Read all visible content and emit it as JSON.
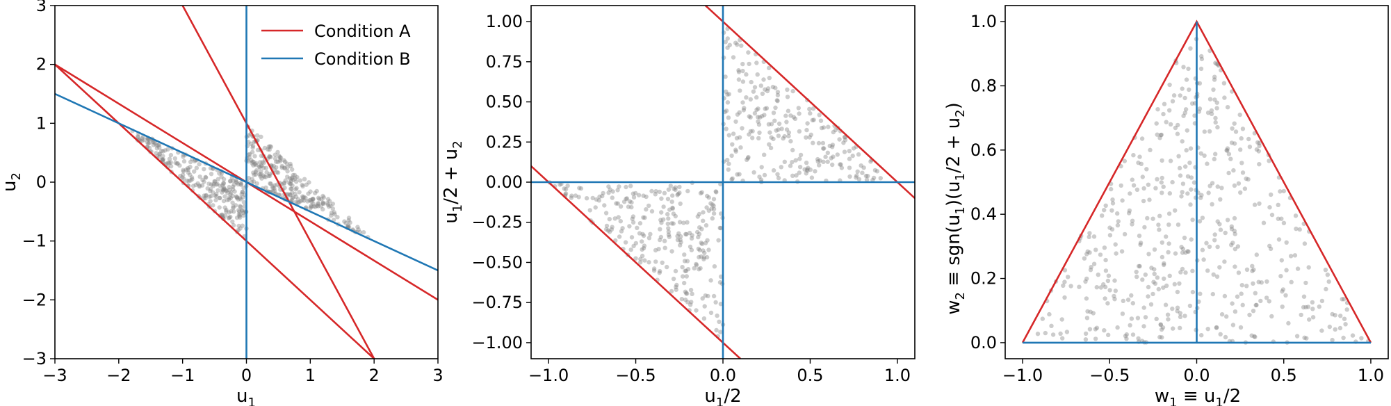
{
  "colors": {
    "condition_a": "#d62728",
    "condition_b": "#1f77b4",
    "points": "#808080"
  },
  "chart_data": [
    {
      "type": "scatter",
      "xlabel_base": "u",
      "xlabel_sub": "1",
      "xlabel_tail": "",
      "ylabel_parts": [
        {
          "t": "u"
        },
        {
          "t": "2",
          "sub": true
        }
      ],
      "xlim": [
        -3,
        3
      ],
      "ylim": [
        -3,
        3
      ],
      "xticks": [
        -3,
        -2,
        -1,
        0,
        1,
        2,
        3
      ],
      "yticks": [
        -3,
        -2,
        -1,
        0,
        1,
        2,
        3
      ],
      "legend": {
        "placement": "top-right",
        "entries": [
          {
            "label": "Condition A",
            "color": "#d62728"
          },
          {
            "label": "Condition B",
            "color": "#1f77b4"
          }
        ]
      },
      "lines": [
        {
          "series": "Condition A",
          "points": [
            [
              -3,
              2
            ],
            [
              3,
              -2
            ]
          ]
        },
        {
          "series": "Condition A",
          "points": [
            [
              -1,
              3
            ],
            [
              2,
              -3
            ]
          ]
        },
        {
          "series": "Condition A",
          "points": [
            [
              -3,
              2
            ],
            [
              2,
              -3
            ]
          ]
        },
        {
          "series": "Condition B",
          "points": [
            [
              0,
              -3
            ],
            [
              0,
              3
            ]
          ]
        },
        {
          "series": "Condition B",
          "points": [
            [
              -3,
              1.5
            ],
            [
              3,
              -1.5
            ]
          ]
        }
      ],
      "scatter_region": "regions bounded by u2=-u1/2, u2=-u1-1 (u1<0) and u2=-u1+1 (u1>0); about 500 points, alpha 0.4"
    },
    {
      "type": "scatter",
      "xlabel_parts": [
        {
          "t": "u"
        },
        {
          "t": "1",
          "sub": true
        },
        {
          "t": "/2"
        }
      ],
      "ylabel_parts": [
        {
          "t": "u"
        },
        {
          "t": "1",
          "sub": true
        },
        {
          "t": "/2 + u"
        },
        {
          "t": "2",
          "sub": true
        }
      ],
      "xlim": [
        -1.1,
        1.1
      ],
      "ylim": [
        -1.1,
        1.1
      ],
      "xticks": [
        -1.0,
        -0.5,
        0.0,
        0.5,
        1.0
      ],
      "xtick_labels": [
        "−1.0",
        "−0.5",
        "0.0",
        "0.5",
        "1.0"
      ],
      "yticks": [
        1.0,
        0.75,
        0.5,
        0.25,
        0.0,
        -0.25,
        -0.5,
        -0.75,
        -1.0
      ],
      "ytick_labels": [
        "1.00",
        "0.75",
        "0.50",
        "0.25",
        "0.00",
        "−0.25",
        "−0.50",
        "−0.75",
        "−1.00"
      ],
      "lines": [
        {
          "series": "Condition A",
          "points": [
            [
              -1.1,
              0.1
            ],
            [
              0.1,
              -1.1
            ]
          ]
        },
        {
          "series": "Condition A",
          "points": [
            [
              -0.1,
              1.1
            ],
            [
              1.1,
              -0.1
            ]
          ]
        },
        {
          "series": "Condition B",
          "points": [
            [
              0,
              -1.1
            ],
            [
              0,
              1.1
            ]
          ]
        },
        {
          "series": "Condition B",
          "points": [
            [
              -1.1,
              0
            ],
            [
              1.1,
              0
            ]
          ]
        }
      ],
      "scatter_region": "two triangles: x in [-1,0], y in [-1-x, 0] and x in [0,1], y in [0, 1-x]"
    },
    {
      "type": "scatter",
      "xlabel_parts": [
        {
          "t": "w"
        },
        {
          "t": "1",
          "sub": true
        },
        {
          "t": " ≡ u"
        },
        {
          "t": "1",
          "sub": true
        },
        {
          "t": "/2"
        }
      ],
      "ylabel_parts": [
        {
          "t": "w"
        },
        {
          "t": "2",
          "sub": true
        },
        {
          "t": " ≡ sgn(u"
        },
        {
          "t": "1",
          "sub": true
        },
        {
          "t": ")(u"
        },
        {
          "t": "1",
          "sub": true
        },
        {
          "t": "/2 + u"
        },
        {
          "t": "2",
          "sub": true
        },
        {
          "t": ")"
        }
      ],
      "xlim": [
        -1.1,
        1.1
      ],
      "ylim": [
        -0.05,
        1.05
      ],
      "xticks": [
        -1.0,
        -0.5,
        0.0,
        0.5,
        1.0
      ],
      "xtick_labels": [
        "−1.0",
        "−0.5",
        "0.0",
        "0.5",
        "1.0"
      ],
      "yticks": [
        0.0,
        0.2,
        0.4,
        0.6,
        0.8,
        1.0
      ],
      "ytick_labels": [
        "0.0",
        "0.2",
        "0.4",
        "0.6",
        "0.8",
        "1.0"
      ],
      "lines": [
        {
          "series": "Condition A",
          "points": [
            [
              -1,
              0
            ],
            [
              0,
              1
            ],
            [
              1,
              0
            ]
          ]
        },
        {
          "series": "Condition B",
          "points": [
            [
              0,
              0
            ],
            [
              0,
              1
            ]
          ]
        },
        {
          "series": "Condition B",
          "points": [
            [
              -1,
              0
            ],
            [
              1,
              0
            ]
          ]
        }
      ],
      "scatter_region": "triangle with vertices (-1,0), (0,1), (1,0)"
    }
  ]
}
